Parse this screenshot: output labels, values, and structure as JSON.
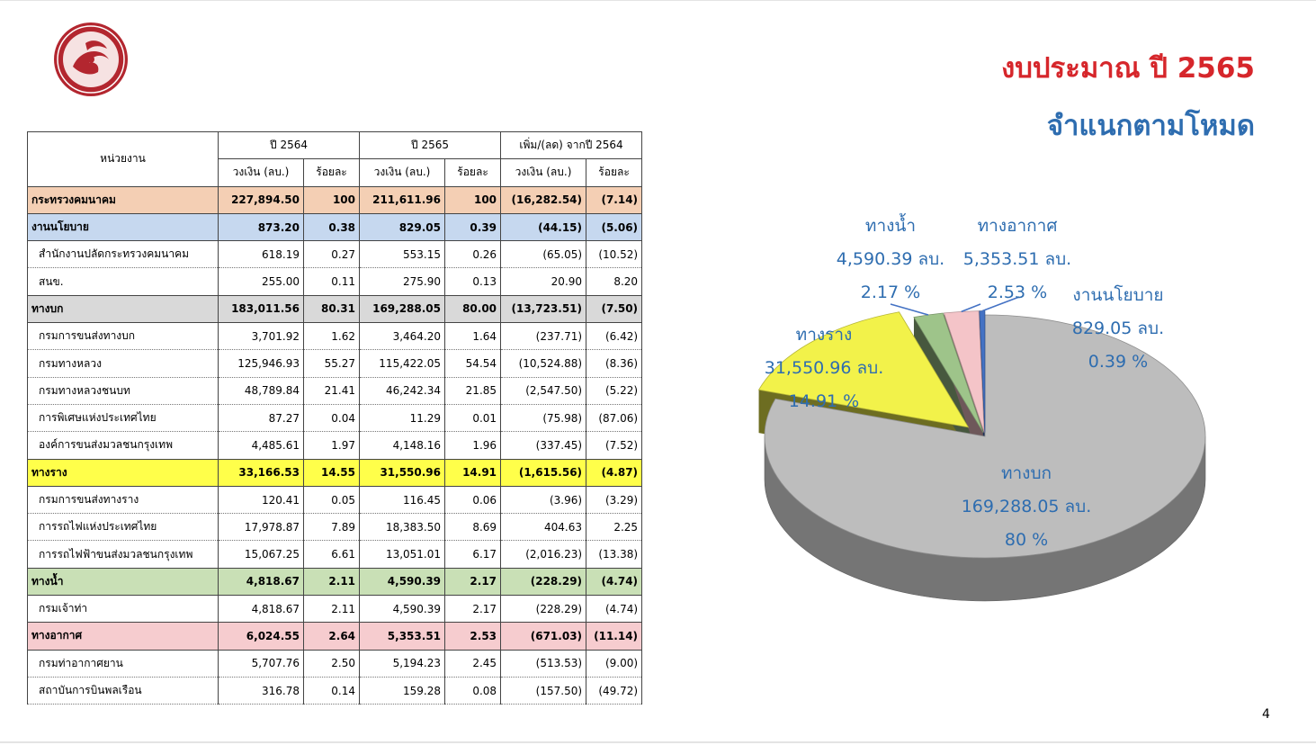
{
  "header": {
    "title": "งบประมาณ ปี 2565",
    "subtitle": "จำแนกตามโหมด",
    "page_number": "4"
  },
  "colors": {
    "title_red": "#d6262b",
    "title_blue": "#2e6db0",
    "ministry": "#f4cfb4",
    "policy": "#c6d8ef",
    "land": "#d9d9d9",
    "rail": "#ffff4a",
    "water": "#c9e0b6",
    "air": "#f6cccf"
  },
  "table": {
    "header_agency": "หน่วยงาน",
    "year_2564": "ปี 2564",
    "year_2565": "ปี 2565",
    "change": "เพิ่ม/(ลด) จากปี 2564",
    "amount": "วงเงิน (ลบ.)",
    "percent": "ร้อยละ",
    "rows": [
      {
        "kind": "group",
        "style": "ministry",
        "name": "กระทรวงคมนาคม",
        "a2564": "227,894.50",
        "p2564": "100",
        "a2565": "211,611.96",
        "p2565": "100",
        "chg": "(16,282.54)",
        "chgp": "(7.14)"
      },
      {
        "kind": "group",
        "style": "policy",
        "name": "งานนโยบาย",
        "a2564": "873.20",
        "p2564": "0.38",
        "a2565": "829.05",
        "p2565": "0.39",
        "chg": "(44.15)",
        "chgp": "(5.06)"
      },
      {
        "kind": "sub",
        "name": "สำนักงานปลัดกระทรวงคมนาคม",
        "a2564": "618.19",
        "p2564": "0.27",
        "a2565": "553.15",
        "p2565": "0.26",
        "chg": "(65.05)",
        "chgp": "(10.52)"
      },
      {
        "kind": "sub",
        "name": "สนข.",
        "a2564": "255.00",
        "p2564": "0.11",
        "a2565": "275.90",
        "p2565": "0.13",
        "chg": "20.90",
        "chgp": "8.20"
      },
      {
        "kind": "group",
        "style": "land",
        "name": "ทางบก",
        "a2564": "183,011.56",
        "p2564": "80.31",
        "a2565": "169,288.05",
        "p2565": "80.00",
        "chg": "(13,723.51)",
        "chgp": "(7.50)"
      },
      {
        "kind": "sub",
        "name": "กรมการขนส่งทางบก",
        "a2564": "3,701.92",
        "p2564": "1.62",
        "a2565": "3,464.20",
        "p2565": "1.64",
        "chg": "(237.71)",
        "chgp": "(6.42)"
      },
      {
        "kind": "sub",
        "name": "กรมทางหลวง",
        "a2564": "125,946.93",
        "p2564": "55.27",
        "a2565": "115,422.05",
        "p2565": "54.54",
        "chg": "(10,524.88)",
        "chgp": "(8.36)"
      },
      {
        "kind": "sub",
        "name": "กรมทางหลวงชนบท",
        "a2564": "48,789.84",
        "p2564": "21.41",
        "a2565": "46,242.34",
        "p2565": "21.85",
        "chg": "(2,547.50)",
        "chgp": "(5.22)"
      },
      {
        "kind": "sub",
        "name": "การพิเศษแห่งประเทศไทย",
        "a2564": "87.27",
        "p2564": "0.04",
        "a2565": "11.29",
        "p2565": "0.01",
        "chg": "(75.98)",
        "chgp": "(87.06)"
      },
      {
        "kind": "sub",
        "name": "องค์การขนส่งมวลชนกรุงเทพ",
        "a2564": "4,485.61",
        "p2564": "1.97",
        "a2565": "4,148.16",
        "p2565": "1.96",
        "chg": "(337.45)",
        "chgp": "(7.52)"
      },
      {
        "kind": "group",
        "style": "rail",
        "name": "ทางราง",
        "a2564": "33,166.53",
        "p2564": "14.55",
        "a2565": "31,550.96",
        "p2565": "14.91",
        "chg": "(1,615.56)",
        "chgp": "(4.87)"
      },
      {
        "kind": "sub",
        "name": "กรมการขนส่งทางราง",
        "a2564": "120.41",
        "p2564": "0.05",
        "a2565": "116.45",
        "p2565": "0.06",
        "chg": "(3.96)",
        "chgp": "(3.29)"
      },
      {
        "kind": "sub",
        "name": "การรถไฟแห่งประเทศไทย",
        "a2564": "17,978.87",
        "p2564": "7.89",
        "a2565": "18,383.50",
        "p2565": "8.69",
        "chg": "404.63",
        "chgp": "2.25"
      },
      {
        "kind": "sub",
        "name": "การรถไฟฟ้าขนส่งมวลชนกรุงเทพ",
        "a2564": "15,067.25",
        "p2564": "6.61",
        "a2565": "13,051.01",
        "p2565": "6.17",
        "chg": "(2,016.23)",
        "chgp": "(13.38)"
      },
      {
        "kind": "group",
        "style": "water",
        "name": "ทางน้ำ",
        "a2564": "4,818.67",
        "p2564": "2.11",
        "a2565": "4,590.39",
        "p2565": "2.17",
        "chg": "(228.29)",
        "chgp": "(4.74)"
      },
      {
        "kind": "sub",
        "name": "กรมเจ้าท่า",
        "a2564": "4,818.67",
        "p2564": "2.11",
        "a2565": "4,590.39",
        "p2565": "2.17",
        "chg": "(228.29)",
        "chgp": "(4.74)"
      },
      {
        "kind": "group",
        "style": "air",
        "name": "ทางอากาศ",
        "a2564": "6,024.55",
        "p2564": "2.64",
        "a2565": "5,353.51",
        "p2565": "2.53",
        "chg": "(671.03)",
        "chgp": "(11.14)"
      },
      {
        "kind": "sub",
        "name": "กรมท่าอากาศยาน",
        "a2564": "5,707.76",
        "p2564": "2.50",
        "a2565": "5,194.23",
        "p2565": "2.45",
        "chg": "(513.53)",
        "chgp": "(9.00)"
      },
      {
        "kind": "sub",
        "name": "สถาบันการบินพลเรือน",
        "a2564": "316.78",
        "p2564": "0.14",
        "a2565": "159.28",
        "p2565": "0.08",
        "chg": "(157.50)",
        "chgp": "(49.72)"
      }
    ]
  },
  "chart_data": {
    "type": "pie",
    "title": "",
    "slices": [
      {
        "name": "ทางบก",
        "value": 169288.05,
        "amount_label": "169,288.05 ลบ.",
        "percent_label": "80 %",
        "color": "#bdbdbd"
      },
      {
        "name": "ทางราง",
        "value": 31550.96,
        "amount_label": "31,550.96 ลบ.",
        "percent_label": "14.91 %",
        "color": "#f2f24a"
      },
      {
        "name": "ทางน้ำ",
        "value": 4590.39,
        "amount_label": "4,590.39 ลบ.",
        "percent_label": "2.17 %",
        "color": "#9ec48a"
      },
      {
        "name": "ทางอากาศ",
        "value": 5353.51,
        "amount_label": "5,353.51 ลบ.",
        "percent_label": "2.53 %",
        "color": "#f4c4c8"
      },
      {
        "name": "งานนโยบาย",
        "value": 829.05,
        "amount_label": "829.05 ลบ.",
        "percent_label": "0.39 %",
        "color": "#4472c4"
      }
    ]
  }
}
